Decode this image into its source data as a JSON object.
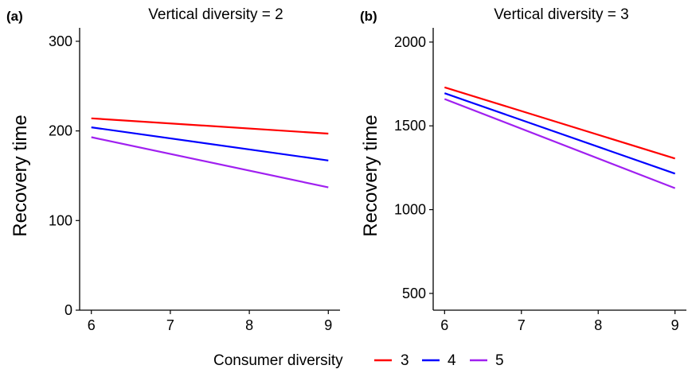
{
  "chart_data": [
    {
      "type": "line",
      "panel": "(a)",
      "title": "Vertical diversity = 2",
      "xlabel": "",
      "ylabel": "Recovery time",
      "xlim": [
        6,
        9
      ],
      "ylim": [
        0,
        315
      ],
      "x_ticks": [
        6,
        7,
        8,
        9
      ],
      "y_ticks": [
        0,
        100,
        200,
        300
      ],
      "grid": false,
      "x": [
        6,
        9
      ],
      "series": [
        {
          "name": "3",
          "color": "#ff0000",
          "values": [
            214,
            197
          ]
        },
        {
          "name": "4",
          "color": "#0000ff",
          "values": [
            204,
            167
          ]
        },
        {
          "name": "5",
          "color": "#a020f0",
          "values": [
            193,
            137
          ]
        }
      ]
    },
    {
      "type": "line",
      "panel": "(b)",
      "title": "Vertical diversity = 3",
      "xlabel": "",
      "ylabel": "Recovery time",
      "xlim": [
        6,
        9
      ],
      "ylim": [
        400,
        2085
      ],
      "x_ticks": [
        6,
        7,
        8,
        9
      ],
      "y_ticks": [
        500,
        1000,
        1500,
        2000
      ],
      "grid": false,
      "x": [
        6,
        9
      ],
      "series": [
        {
          "name": "3",
          "color": "#ff0000",
          "values": [
            1730,
            1305
          ]
        },
        {
          "name": "4",
          "color": "#0000ff",
          "values": [
            1695,
            1215
          ]
        },
        {
          "name": "5",
          "color": "#a020f0",
          "values": [
            1660,
            1128
          ]
        }
      ]
    }
  ],
  "legend": {
    "title": "Consumer diversity",
    "position": "bottom",
    "items": [
      {
        "label": "3",
        "color": "#ff0000"
      },
      {
        "label": "4",
        "color": "#0000ff"
      },
      {
        "label": "5",
        "color": "#a020f0"
      }
    ]
  }
}
